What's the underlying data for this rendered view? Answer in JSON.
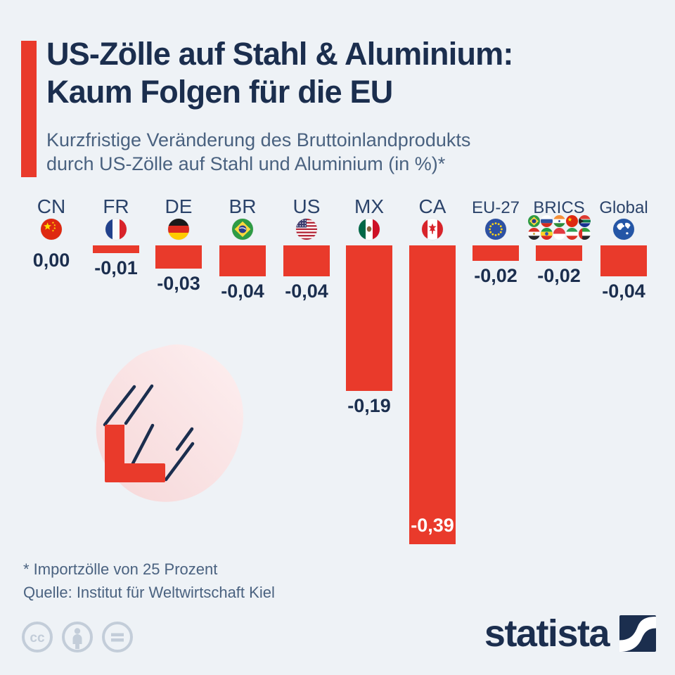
{
  "page": {
    "background_color": "#eef2f6",
    "accent_red": "#e93a2b",
    "navy": "#1b2e4e",
    "slate": "#4a6280"
  },
  "header": {
    "title_line1": "US-Zölle auf Stahl & Aluminium:",
    "title_line2": "Kaum Folgen für die EU",
    "subtitle_line1": "Kurzfristige Veränderung des Bruttoinlandprodukts",
    "subtitle_line2": "durch US-Zölle auf Stahl und Aluminium (in %)*"
  },
  "chart_data": {
    "type": "bar",
    "title": "Kurzfristige Veränderung des Bruttoinlandprodukts durch US-Zölle auf Stahl und Aluminium (in %)",
    "unit": "% GDP change",
    "categories": [
      "CN",
      "FR",
      "DE",
      "BR",
      "US",
      "MX",
      "CA",
      "EU-27",
      "BRICS",
      "Global"
    ],
    "values": [
      0.0,
      -0.01,
      -0.03,
      -0.04,
      -0.04,
      -0.19,
      -0.39,
      -0.02,
      -0.02,
      -0.04
    ],
    "value_labels": [
      "0,00",
      "-0,01",
      "-0,03",
      "-0,04",
      "-0,04",
      "-0,19",
      "-0,39",
      "-0,02",
      "-0,02",
      "-0,04"
    ],
    "icons": [
      "flag-cn",
      "flag-fr",
      "flag-de",
      "flag-br",
      "flag-us",
      "flag-mx",
      "flag-ca",
      "flag-eu",
      "flags-brics",
      "globe-icon"
    ],
    "brics_flags": [
      "flag-br",
      "flag-ru",
      "flag-in",
      "flag-cn",
      "flag-za",
      "flag-eg",
      "flag-et",
      "flag-id",
      "flag-ir",
      "flag-ae"
    ],
    "bar_color": "#e93a2b",
    "ylim": [
      -0.42,
      0.02
    ],
    "grid": false,
    "legend": "none"
  },
  "footnotes": {
    "asterisk": "* Importzölle von 25 Prozent",
    "source": "Quelle: Institut für Weltwirtschaft Kiel"
  },
  "footer": {
    "license_icons": [
      "cc-icon",
      "attribution-icon",
      "no-derivatives-icon"
    ],
    "brand": "statista"
  }
}
